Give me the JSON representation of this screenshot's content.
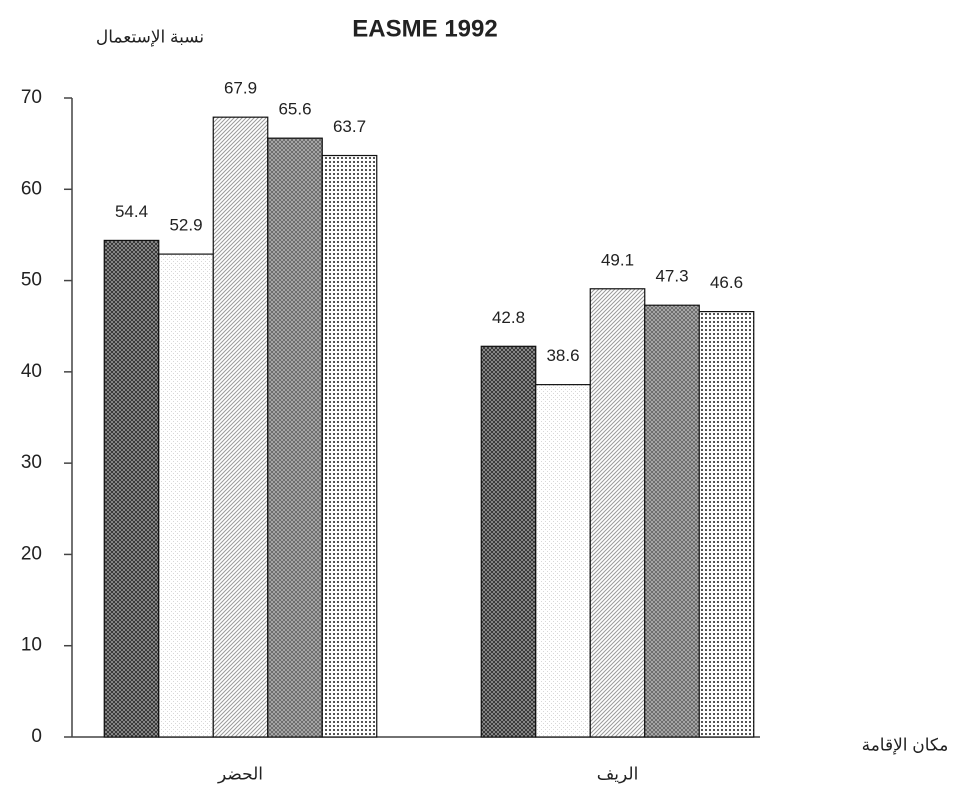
{
  "chart_data": {
    "type": "bar",
    "title": "EASME 1992",
    "ylabel": "نسبة الإستعمال",
    "xlabel": "مكان الإقامة",
    "categories": [
      "الحضر",
      "الريف"
    ],
    "series": [
      {
        "color": "#3a3a3a",
        "values": [
          54.4,
          42.8
        ]
      },
      {
        "color": "#d8d8d8",
        "values": [
          52.9,
          38.6
        ]
      },
      {
        "color": "#9a9a9a",
        "values": [
          67.9,
          49.1
        ]
      },
      {
        "color": "#6e6e6e",
        "values": [
          65.6,
          47.3
        ]
      },
      {
        "color": "#555555",
        "values": [
          63.7,
          46.6
        ]
      }
    ],
    "ylim": [
      0,
      70
    ],
    "yticks": [
      0,
      10,
      20,
      30,
      40,
      50,
      60,
      70
    ]
  }
}
